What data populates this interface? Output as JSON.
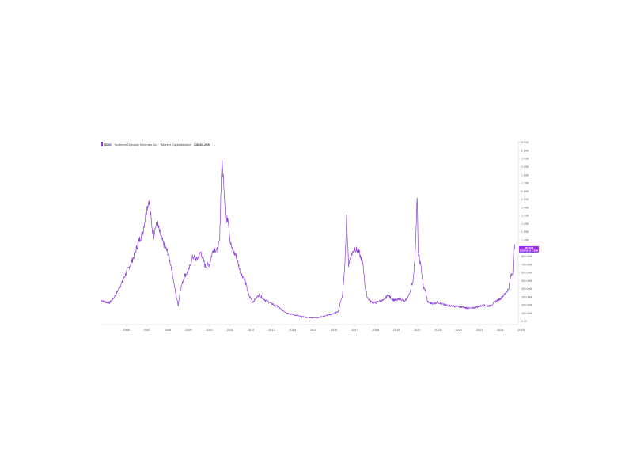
{
  "header": {
    "ticker": "NDM",
    "company": "Northern Dynasty Minerals Ltd.",
    "metric": "Market Capitalization",
    "value": "C$887.20M",
    "caret": "⌄"
  },
  "colors": {
    "series": "#8b3fd9",
    "badge": "#9b30e8",
    "axis": "#cccccc"
  },
  "last_value": {
    "line1": "887.20M",
    "line2": "2025-03-11 7.86M"
  },
  "chart_data": {
    "type": "line",
    "title": "",
    "xlabel": "",
    "ylabel": "",
    "x_ticks": [
      "2006",
      "2007",
      "2008",
      "2009",
      "2010",
      "2011",
      "2012",
      "2013",
      "2014",
      "2015",
      "2016",
      "2017",
      "2018",
      "2019",
      "2020",
      "2021",
      "2022",
      "2023",
      "2024",
      "2025"
    ],
    "y_ticks": [
      "0.00",
      "100.00M",
      "200.00M",
      "300.00M",
      "400.00M",
      "500.00M",
      "600.00M",
      "700.00M",
      "800.00M",
      "900.00M",
      "1.00B",
      "1.10B",
      "1.20B",
      "1.30B",
      "1.40B",
      "1.50B",
      "1.60B",
      "1.70B",
      "1.80B",
      "1.90B",
      "2.00B",
      "2.10B",
      "2.20B"
    ],
    "ylim": [
      0,
      2200
    ],
    "xlim": [
      2005.3,
      2025.25
    ],
    "units": "millions CAD",
    "grid": false,
    "legend": "none",
    "series": [
      {
        "x": [
          2005.3,
          2005.5,
          2005.7,
          2005.9,
          2006.1,
          2006.3,
          2006.5,
          2006.7,
          2006.9,
          2007.1,
          2007.3,
          2007.5,
          2007.6,
          2007.7,
          2007.8,
          2007.9,
          2008.0,
          2008.1,
          2008.3,
          2008.5,
          2008.7,
          2008.85,
          2009.0,
          2009.1,
          2009.3,
          2009.5,
          2009.7,
          2009.9,
          2010.1,
          2010.3,
          2010.5,
          2010.7,
          2010.9,
          2011.0,
          2011.05,
          2011.1,
          2011.2,
          2011.3,
          2011.4,
          2011.5,
          2011.6,
          2011.8,
          2012.0,
          2012.2,
          2012.4,
          2012.6,
          2012.9,
          2013.2,
          2013.5,
          2013.8,
          2014.0,
          2014.3,
          2014.6,
          2014.9,
          2015.2,
          2015.5,
          2015.8,
          2016.1,
          2016.4,
          2016.7,
          2016.9,
          2017.0,
          2017.05,
          2017.1,
          2017.2,
          2017.3,
          2017.4,
          2017.5,
          2017.7,
          2017.9,
          2018.0,
          2018.1,
          2018.2,
          2018.3,
          2018.5,
          2018.7,
          2018.9,
          2019.1,
          2019.3,
          2019.5,
          2019.7,
          2019.9,
          2020.1,
          2020.3,
          2020.4,
          2020.5,
          2020.55,
          2020.6,
          2020.7,
          2020.8,
          2020.9,
          2021.0,
          2021.1,
          2021.3,
          2021.5,
          2021.7,
          2021.9,
          2022.2,
          2022.5,
          2022.8,
          2023.1,
          2023.4,
          2023.7,
          2024.0,
          2024.3,
          2024.5,
          2024.7,
          2024.9,
          2025.0,
          2025.1,
          2025.15,
          2025.2
        ],
        "y": [
          260,
          240,
          230,
          290,
          380,
          480,
          600,
          700,
          820,
          980,
          1100,
          1400,
          1500,
          1250,
          1050,
          1150,
          1210,
          1100,
          950,
          850,
          640,
          390,
          200,
          380,
          560,
          620,
          800,
          760,
          850,
          680,
          700,
          900,
          870,
          1000,
          1550,
          1950,
          1700,
          1200,
          1300,
          1000,
          880,
          800,
          600,
          520,
          320,
          240,
          330,
          260,
          220,
          180,
          140,
          100,
          80,
          60,
          50,
          45,
          50,
          70,
          90,
          120,
          320,
          600,
          870,
          1280,
          700,
          800,
          850,
          900,
          850,
          700,
          420,
          300,
          260,
          240,
          230,
          250,
          260,
          330,
          270,
          260,
          280,
          240,
          320,
          500,
          800,
          1550,
          850,
          780,
          650,
          420,
          380,
          240,
          230,
          220,
          240,
          210,
          200,
          190,
          180,
          170,
          160,
          180,
          200,
          190,
          250,
          280,
          330,
          400,
          550,
          600,
          950,
          887
        ]
      }
    ]
  }
}
